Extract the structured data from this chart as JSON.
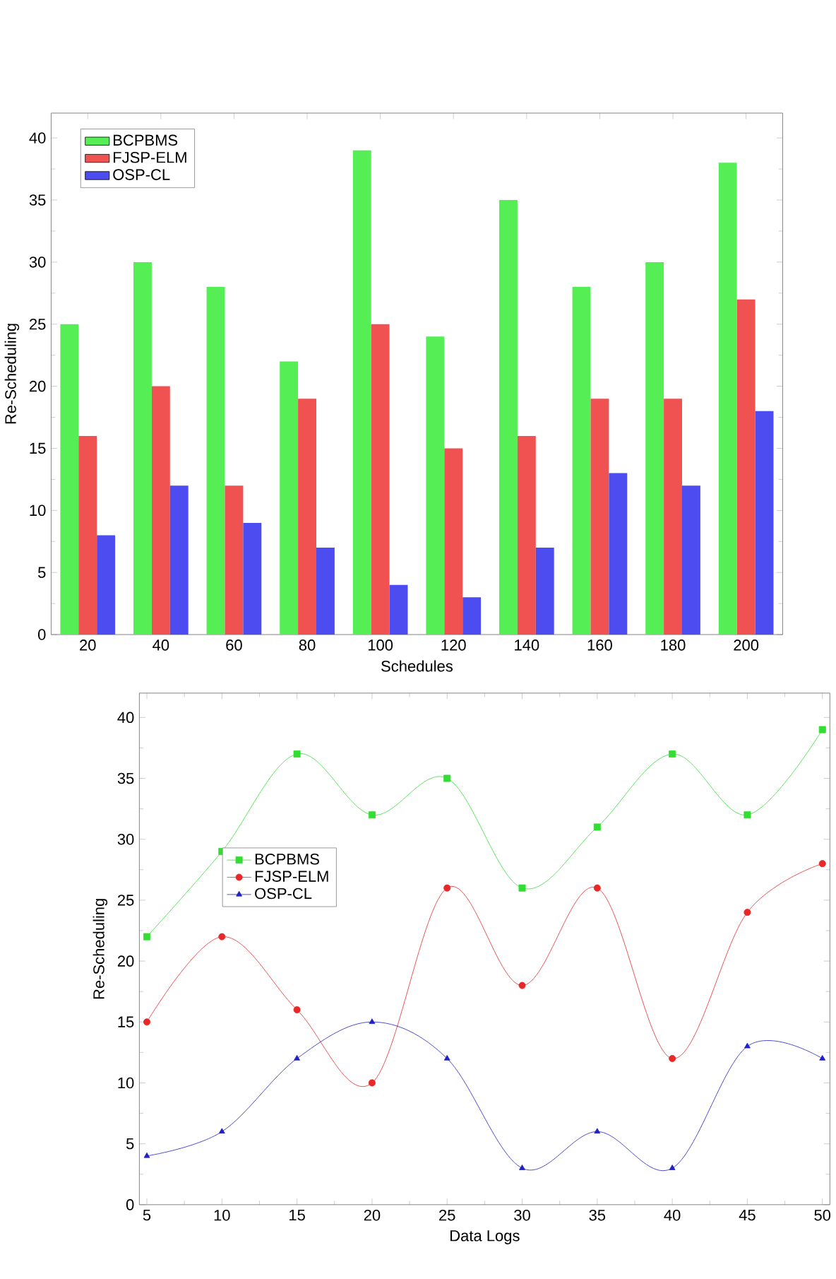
{
  "chart_data": [
    {
      "type": "bar",
      "xlabel": "Schedules",
      "ylabel": "Re-Scheduling",
      "categories": [
        "20",
        "40",
        "60",
        "80",
        "100",
        "120",
        "140",
        "160",
        "180",
        "200"
      ],
      "series": [
        {
          "name": "BCPBMS",
          "color": "#55ee55",
          "values": [
            25,
            30,
            28,
            22,
            39,
            24,
            35,
            28,
            30,
            38
          ]
        },
        {
          "name": "FJSP-ELM",
          "color": "#f05252",
          "values": [
            16,
            20,
            12,
            19,
            25,
            15,
            16,
            19,
            19,
            27
          ]
        },
        {
          "name": "OSP-CL",
          "color": "#4c4cf0",
          "values": [
            8,
            12,
            9,
            7,
            4,
            3,
            7,
            13,
            12,
            18
          ]
        }
      ],
      "ylim": [
        0,
        42
      ],
      "yticks": [
        0,
        5,
        10,
        15,
        20,
        25,
        30,
        35,
        40
      ],
      "legend": "top left"
    },
    {
      "type": "line",
      "xlabel": "Data Logs",
      "ylabel": "Re-Scheduling",
      "x": [
        5,
        10,
        15,
        20,
        25,
        30,
        35,
        40,
        45,
        50
      ],
      "series": [
        {
          "name": "BCPBMS",
          "color": "#33dd33",
          "marker": "square",
          "values": [
            22,
            29,
            37,
            32,
            35,
            26,
            31,
            37,
            32,
            39
          ]
        },
        {
          "name": "FJSP-ELM",
          "color": "#e82828",
          "marker": "circle",
          "values": [
            15,
            22,
            16,
            10,
            26,
            18,
            26,
            12,
            24,
            28
          ]
        },
        {
          "name": "OSP-CL",
          "color": "#2020c8",
          "marker": "triangle",
          "values": [
            4,
            6,
            12,
            15,
            12,
            3,
            6,
            3,
            13,
            12
          ]
        }
      ],
      "xlim": [
        4.5,
        50.5
      ],
      "xticks": [
        5,
        10,
        15,
        20,
        25,
        30,
        35,
        40,
        45,
        50
      ],
      "ylim": [
        0,
        42
      ],
      "yticks": [
        0,
        5,
        10,
        15,
        20,
        25,
        30,
        35,
        40
      ],
      "legend": "left"
    }
  ]
}
